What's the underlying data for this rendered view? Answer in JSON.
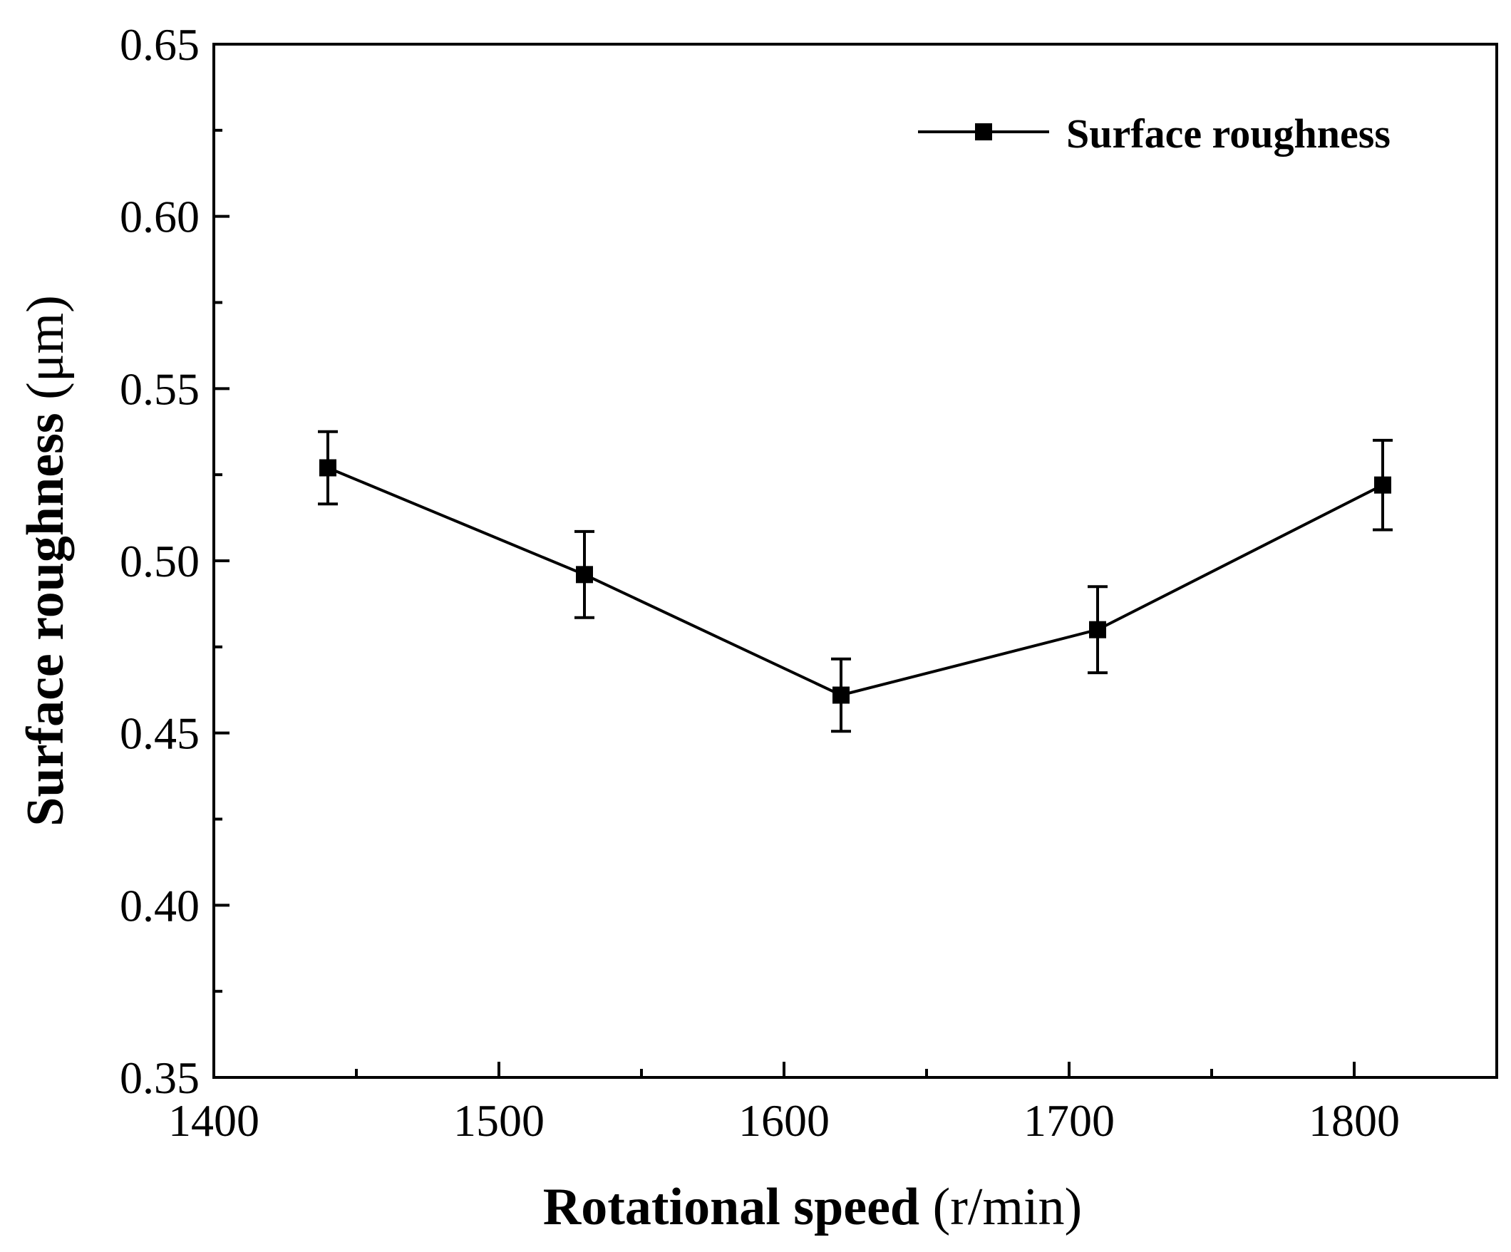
{
  "chart_data": {
    "type": "line",
    "x": [
      1440,
      1530,
      1620,
      1710,
      1810
    ],
    "series": [
      {
        "name": "Surface roughness",
        "values": [
          0.527,
          0.496,
          0.461,
          0.48,
          0.522
        ],
        "errors": [
          0.0105,
          0.0125,
          0.0105,
          0.0125,
          0.013
        ]
      }
    ],
    "xlabel_bold": "Rotational speed",
    "xlabel_unit": "(r/min)",
    "ylabel_bold": "Surface roughness",
    "ylabel_unit": "(μm)",
    "xlim": [
      1400,
      1850
    ],
    "ylim": [
      0.35,
      0.65
    ],
    "xticks": [
      1400,
      1500,
      1600,
      1700,
      1800
    ],
    "xtick_labels": [
      "1400",
      "1500",
      "1600",
      "1700",
      "1800"
    ],
    "xminor": [
      1450,
      1550,
      1650,
      1750
    ],
    "yticks": [
      0.35,
      0.4,
      0.45,
      0.5,
      0.55,
      0.6,
      0.65
    ],
    "ytick_labels": [
      "0.35",
      "0.40",
      "0.45",
      "0.50",
      "0.55",
      "0.60",
      "0.65"
    ],
    "yminor": [
      0.375,
      0.425,
      0.475,
      0.525,
      0.575,
      0.625
    ],
    "grid": false,
    "legend_position": "top-right",
    "line_color": "#000000"
  }
}
